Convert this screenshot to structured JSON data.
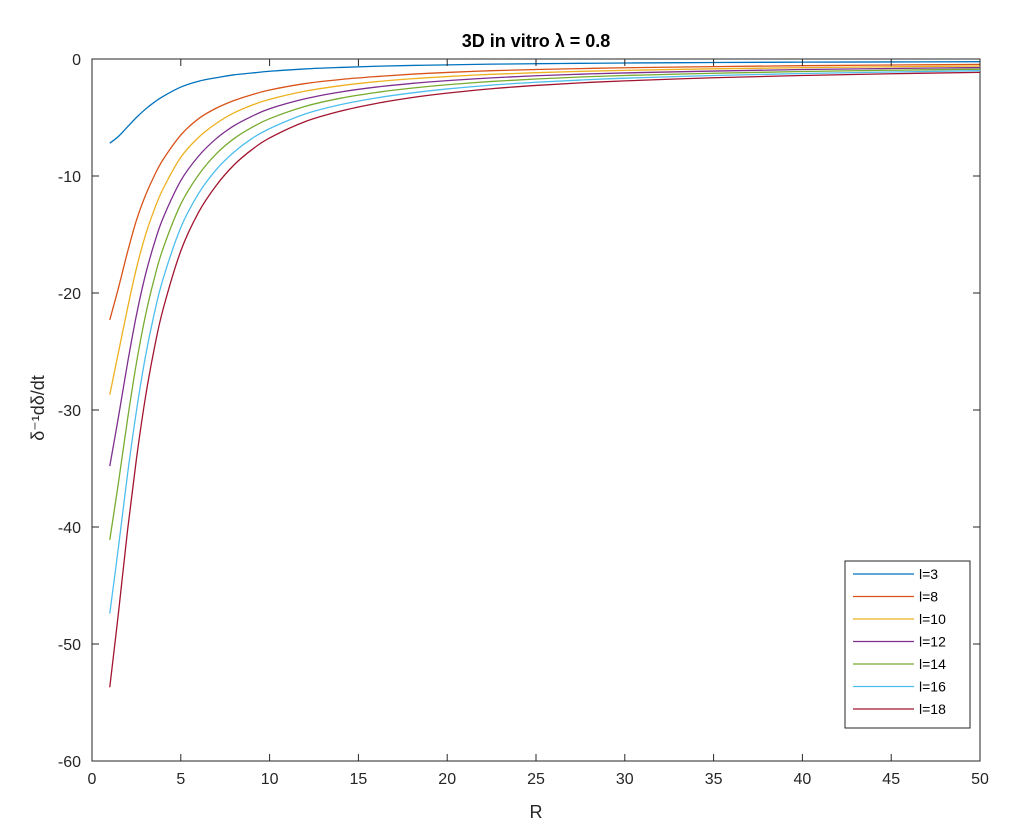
{
  "chart_data": {
    "type": "line",
    "title": "3D  in  vitro  λ  =  0.8",
    "xlabel": "R",
    "ylabel": "δ⁻¹dδ/dt",
    "xlim": [
      0,
      50
    ],
    "ylim": [
      -60,
      0
    ],
    "xticks": [
      0,
      5,
      10,
      15,
      20,
      25,
      30,
      35,
      40,
      45,
      50
    ],
    "yticks": [
      -60,
      -50,
      -40,
      -30,
      -20,
      -10,
      0
    ],
    "grid": false,
    "legend_position": "bottom-right",
    "x": [
      1,
      1.5,
      2,
      2.5,
      3,
      3.5,
      4,
      5,
      6,
      7,
      8,
      9,
      10,
      12,
      14,
      16,
      18,
      20,
      22.5,
      25,
      27.5,
      30,
      35,
      40,
      45,
      50
    ],
    "series": [
      {
        "name": "l=3",
        "color": "#0072BD",
        "values": [
          -7.2,
          -6.6,
          -5.8,
          -5.0,
          -4.3,
          -3.7,
          -3.2,
          -2.4,
          -1.9,
          -1.6,
          -1.35,
          -1.2,
          -1.05,
          -0.85,
          -0.72,
          -0.62,
          -0.55,
          -0.5,
          -0.44,
          -0.4,
          -0.37,
          -0.34,
          -0.3,
          -0.27,
          -0.25,
          -0.23
        ]
      },
      {
        "name": "l=8",
        "color": "#D95319",
        "values": [
          -22.3,
          -19.5,
          -16.5,
          -13.8,
          -11.7,
          -10.0,
          -8.6,
          -6.5,
          -5.1,
          -4.2,
          -3.55,
          -3.05,
          -2.65,
          -2.1,
          -1.75,
          -1.5,
          -1.3,
          -1.15,
          -1.0,
          -0.9,
          -0.82,
          -0.75,
          -0.65,
          -0.57,
          -0.51,
          -0.46
        ]
      },
      {
        "name": "l=10",
        "color": "#EDB120",
        "values": [
          -28.7,
          -25.0,
          -21.3,
          -17.9,
          -15.1,
          -12.9,
          -11.1,
          -8.4,
          -6.7,
          -5.5,
          -4.6,
          -3.95,
          -3.45,
          -2.75,
          -2.28,
          -1.94,
          -1.69,
          -1.5,
          -1.31,
          -1.17,
          -1.06,
          -0.97,
          -0.84,
          -0.74,
          -0.66,
          -0.6
        ]
      },
      {
        "name": "l=12",
        "color": "#7E2F8E",
        "values": [
          -34.8,
          -30.5,
          -26.0,
          -21.9,
          -18.5,
          -15.8,
          -13.6,
          -10.4,
          -8.3,
          -6.8,
          -5.7,
          -4.9,
          -4.25,
          -3.4,
          -2.82,
          -2.4,
          -2.09,
          -1.85,
          -1.61,
          -1.43,
          -1.3,
          -1.19,
          -1.03,
          -0.9,
          -0.81,
          -0.73
        ]
      },
      {
        "name": "l=14",
        "color": "#77AC30",
        "values": [
          -41.1,
          -36.1,
          -30.8,
          -26.0,
          -22.0,
          -18.8,
          -16.2,
          -12.4,
          -9.9,
          -8.1,
          -6.8,
          -5.85,
          -5.1,
          -4.05,
          -3.35,
          -2.86,
          -2.49,
          -2.2,
          -1.92,
          -1.71,
          -1.54,
          -1.41,
          -1.22,
          -1.07,
          -0.96,
          -0.87
        ]
      },
      {
        "name": "l=16",
        "color": "#4DBEEE",
        "values": [
          -47.4,
          -41.6,
          -35.5,
          -30.1,
          -25.5,
          -21.8,
          -18.8,
          -14.4,
          -11.5,
          -9.45,
          -7.95,
          -6.8,
          -5.95,
          -4.7,
          -3.9,
          -3.33,
          -2.9,
          -2.56,
          -2.23,
          -1.99,
          -1.8,
          -1.64,
          -1.41,
          -1.24,
          -1.11,
          -1.0
        ]
      },
      {
        "name": "l=18",
        "color": "#A2142F",
        "values": [
          -53.7,
          -47.2,
          -40.3,
          -34.2,
          -29.0,
          -24.8,
          -21.4,
          -16.4,
          -13.1,
          -10.8,
          -9.05,
          -7.75,
          -6.75,
          -5.35,
          -4.45,
          -3.8,
          -3.3,
          -2.92,
          -2.54,
          -2.26,
          -2.04,
          -1.87,
          -1.6,
          -1.41,
          -1.26,
          -1.14
        ]
      }
    ]
  }
}
